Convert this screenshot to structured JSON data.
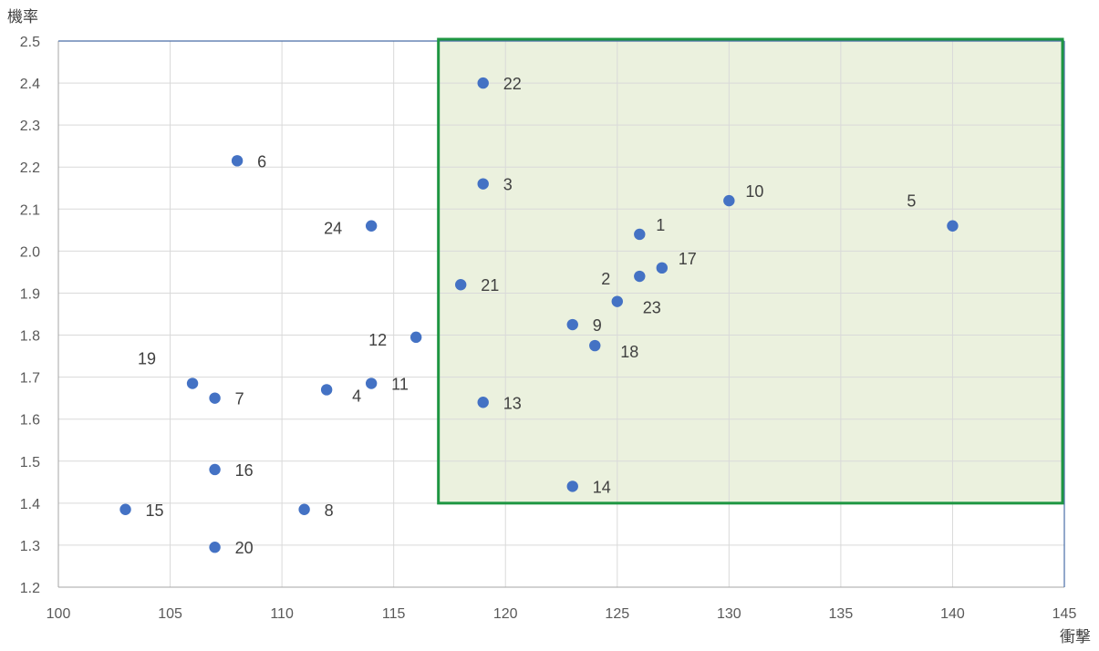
{
  "chart_data": {
    "type": "scatter",
    "title": "",
    "xlabel": "衝撃",
    "ylabel": "機率",
    "xlim": [
      100,
      145
    ],
    "ylim": [
      1.2,
      2.5
    ],
    "x_ticks": [
      "100",
      "105",
      "110",
      "115",
      "120",
      "125",
      "130",
      "135",
      "140",
      "145"
    ],
    "y_ticks": [
      "1.2",
      "1.3",
      "1.4",
      "1.5",
      "1.6",
      "1.7",
      "1.8",
      "1.9",
      "2.0",
      "2.1",
      "2.2",
      "2.3",
      "2.4",
      "2.5"
    ],
    "grid": true,
    "legend": "none",
    "marker_color": "#4472c4",
    "highlight_region": {
      "x_range": [
        117,
        145
      ],
      "y_range": [
        1.4,
        2.5
      ],
      "fill_color": "#ebf1de",
      "border_color": "#1e9642"
    },
    "points": [
      {
        "label": "1",
        "x": 126,
        "y": 2.04,
        "label_pos": "above-right"
      },
      {
        "label": "2",
        "x": 126,
        "y": 1.94,
        "label_pos": "left"
      },
      {
        "label": "3",
        "x": 119,
        "y": 2.16,
        "label_pos": "right"
      },
      {
        "label": "4",
        "x": 112,
        "y": 1.67,
        "label_pos": "below-right"
      },
      {
        "label": "5",
        "x": 140,
        "y": 2.06,
        "label_pos": "above-left"
      },
      {
        "label": "6",
        "x": 108,
        "y": 2.215,
        "label_pos": "right"
      },
      {
        "label": "7",
        "x": 107,
        "y": 1.65,
        "label_pos": "right"
      },
      {
        "label": "8",
        "x": 111,
        "y": 1.385,
        "label_pos": "right"
      },
      {
        "label": "9",
        "x": 123,
        "y": 1.825,
        "label_pos": "right"
      },
      {
        "label": "10",
        "x": 130,
        "y": 2.12,
        "label_pos": "above-right"
      },
      {
        "label": "11",
        "x": 114,
        "y": 1.685,
        "label_pos": "right"
      },
      {
        "label": "12",
        "x": 116,
        "y": 1.795,
        "label_pos": "left"
      },
      {
        "label": "13",
        "x": 119,
        "y": 1.64,
        "label_pos": "right"
      },
      {
        "label": "14",
        "x": 123,
        "y": 1.44,
        "label_pos": "right"
      },
      {
        "label": "15",
        "x": 103,
        "y": 1.385,
        "label_pos": "right"
      },
      {
        "label": "16",
        "x": 107,
        "y": 1.48,
        "label_pos": "right"
      },
      {
        "label": "17",
        "x": 127,
        "y": 1.96,
        "label_pos": "above-right"
      },
      {
        "label": "18",
        "x": 124,
        "y": 1.775,
        "label_pos": "below-right"
      },
      {
        "label": "19",
        "x": 106,
        "y": 1.685,
        "label_pos": "above-left"
      },
      {
        "label": "20",
        "x": 107,
        "y": 1.295,
        "label_pos": "right"
      },
      {
        "label": "21",
        "x": 118,
        "y": 1.92,
        "label_pos": "right"
      },
      {
        "label": "22",
        "x": 119,
        "y": 2.4,
        "label_pos": "right"
      },
      {
        "label": "23",
        "x": 125,
        "y": 1.88,
        "label_pos": "below-right"
      },
      {
        "label": "24",
        "x": 114,
        "y": 2.06,
        "label_pos": "left"
      }
    ]
  }
}
